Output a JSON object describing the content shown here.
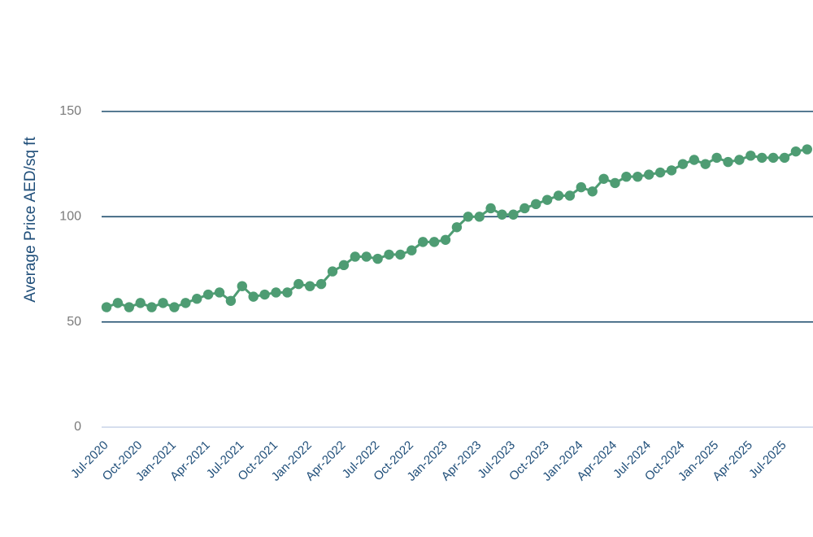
{
  "chart_data": {
    "type": "line",
    "y_label": "Average Price AED/sq ft",
    "categories": [
      "Jul-2020",
      null,
      null,
      "Oct-2020",
      null,
      null,
      "Jan-2021",
      null,
      null,
      "Apr-2021",
      null,
      null,
      "Jul-2021",
      null,
      null,
      "Oct-2021",
      null,
      null,
      "Jan-2022",
      null,
      null,
      "Apr-2022",
      null,
      null,
      "Jul-2022",
      null,
      null,
      "Oct-2022",
      null,
      null,
      "Jan-2023",
      null,
      null,
      "Apr-2023",
      null,
      null,
      "Jul-2023",
      null,
      null,
      "Oct-2023",
      null,
      null,
      "Jan-2024",
      null,
      null,
      "Apr-2024",
      null,
      null,
      "Jul-2024",
      null,
      null,
      "Oct-2024",
      null,
      null,
      "Jan-2025",
      null,
      null,
      "Apr-2025",
      null,
      null,
      "Jul-2025",
      null,
      null
    ],
    "series": [
      {
        "name": "Average Price",
        "color": "#4e9c73",
        "values": [
          57,
          59,
          57,
          59,
          57,
          59,
          57,
          59,
          61,
          63,
          64,
          60,
          67,
          62,
          63,
          64,
          64,
          68,
          67,
          68,
          74,
          77,
          81,
          81,
          80,
          82,
          82,
          84,
          88,
          88,
          89,
          95,
          100,
          100,
          104,
          101,
          101,
          104,
          106,
          108,
          110,
          110,
          114,
          112,
          118,
          116,
          119,
          119,
          120,
          121,
          122,
          125,
          127,
          125,
          128,
          126,
          127,
          129,
          128,
          128,
          128,
          131,
          132
        ]
      }
    ],
    "ylim": [
      0,
      150
    ],
    "yticks": [
      0,
      50,
      100,
      150
    ],
    "grid": true
  }
}
